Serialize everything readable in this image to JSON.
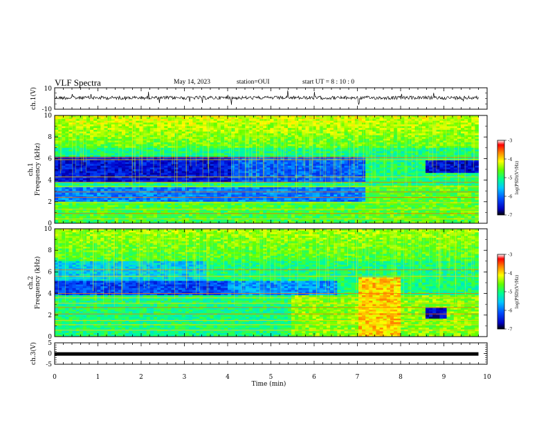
{
  "header": {
    "title": "VLF Spectra",
    "date": "May 14, 2023",
    "station": "station=OUI",
    "start": "start  UT =   8  : 10 : 0"
  },
  "chart_data": [
    {
      "type": "line",
      "id": "ch1-waveform",
      "ylabel": "ch.1(V)",
      "ylim": [
        -10,
        10
      ],
      "yticks": [
        "10",
        "-10"
      ],
      "xlim": [
        0,
        10
      ],
      "note_series": "noisy waveform centered near 0 V with sparse spikes, data ends at ~9.8 min"
    },
    {
      "type": "heatmap",
      "id": "ch1-spectrogram",
      "ylabel": "ch.1\nFrequency (kHz)",
      "ylabel_lines": [
        "ch.1",
        "Frequency (kHz)"
      ],
      "ylim": [
        0,
        10
      ],
      "yticks": [
        "0",
        "2",
        "4",
        "6",
        "8",
        "10"
      ],
      "xlim": [
        0,
        10
      ],
      "data_end_min": 9.8,
      "colorbar": {
        "label": "log(PSD)(V²/Hz)",
        "range": [
          -7,
          -3
        ],
        "ticks": [
          "-3",
          "-4",
          "-5",
          "-6",
          "-7"
        ]
      }
    },
    {
      "type": "heatmap",
      "id": "ch2-spectrogram",
      "ylabel_lines": [
        "ch.2",
        "Frequency (kHz)"
      ],
      "ylim": [
        0,
        10
      ],
      "yticks": [
        "0",
        "2",
        "4",
        "6",
        "8",
        "10"
      ],
      "xlim": [
        0,
        10
      ],
      "data_end_min": 9.8,
      "colorbar": {
        "label": "log(PSD)(V²/Hz)",
        "range": [
          -7,
          -3
        ],
        "ticks": [
          "-3",
          "-4",
          "-5",
          "-6",
          "-7"
        ]
      }
    },
    {
      "type": "line",
      "id": "ch3-waveform",
      "ylabel": "ch.3(V)",
      "ylim": [
        -5,
        5
      ],
      "yticks": [
        "5",
        "0",
        "-5"
      ],
      "xlim": [
        0,
        10
      ],
      "xlabel": "Time (min)",
      "xticks": [
        "0",
        "1",
        "2",
        "3",
        "4",
        "5",
        "6",
        "7",
        "8",
        "9",
        "10"
      ],
      "series_value": -0.2
    }
  ],
  "colors": {
    "axis": "#000000",
    "colormap": [
      "#000080",
      "#0000ff",
      "#00a0ff",
      "#00ffff",
      "#00ff80",
      "#80ff00",
      "#ffff00",
      "#ff8000",
      "#ff0000",
      "#a00000"
    ]
  }
}
